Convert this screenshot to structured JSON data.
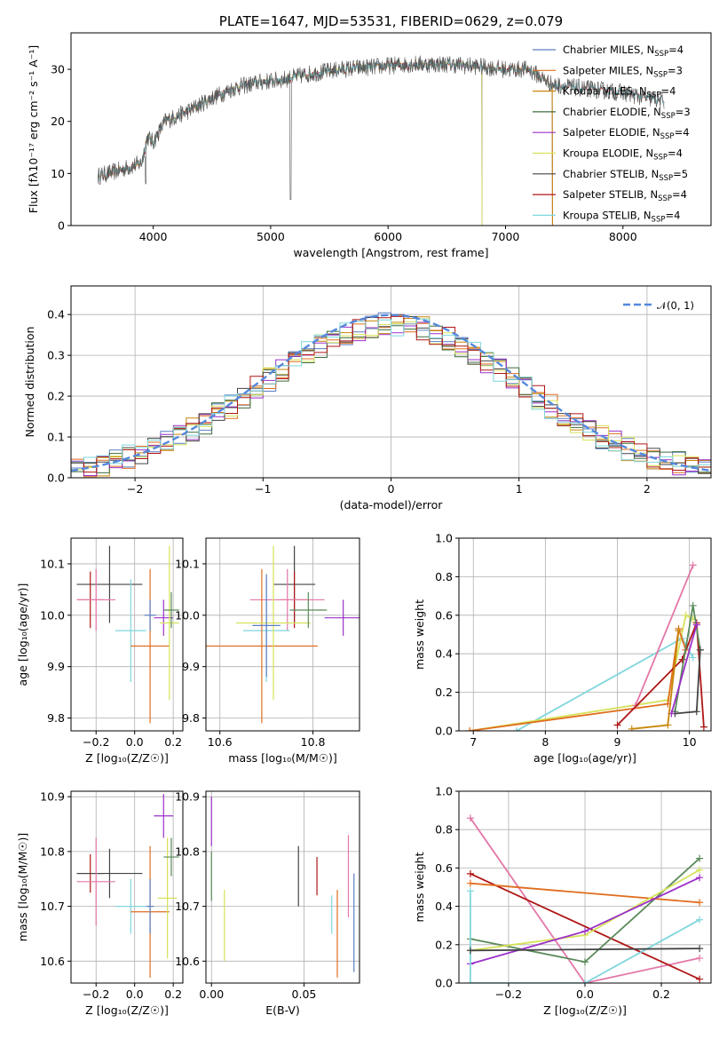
{
  "figure_title": "PLATE=1647, MJD=53531, FIBERID=0629, z=0.079",
  "colors": {
    "Chabrier MILES": "#5b7fc4",
    "Salpeter MILES": "#e06e1e",
    "Kroupa MILES": "#c8860a",
    "Chabrier ELODIE": "#3d6b3d",
    "Salpeter ELODIE": "#9b30c9",
    "Kroupa ELODIE": "#d6e25a",
    "Chabrier STELIB": "#444444",
    "Salpeter STELIB": "#b01616",
    "Kroupa STELIB": "#7fd6dc",
    "gauss": "#5588dd",
    "extra_pink": "#e377a8",
    "extra_green": "#5a8a5a"
  },
  "chart_data": [
    {
      "type": "line",
      "title": "PLATE=1647, MJD=53531, FIBERID=0629, z=0.079",
      "xlabel": "wavelength [Angstrom, rest frame]",
      "ylabel": "Flux [fλ10⁻¹⁷ erg cm⁻² s⁻¹ A⁻¹]",
      "xlim": [
        3300,
        8750
      ],
      "ylim": [
        0,
        37
      ],
      "xticks": [
        "4000",
        "5000",
        "6000",
        "7000",
        "8000"
      ],
      "yticks": [
        "0",
        "10",
        "20",
        "30"
      ],
      "legend": [
        {
          "name": "Chabrier MILES, N",
          "sub": "SSP",
          "tail": "=4"
        },
        {
          "name": "Salpeter MILES, N",
          "sub": "SSP",
          "tail": "=3"
        },
        {
          "name": "Kroupa MILES, N",
          "sub": "SSP",
          "tail": "=4"
        },
        {
          "name": "Chabrier ELODIE, N",
          "sub": "SSP",
          "tail": "=3"
        },
        {
          "name": "Salpeter ELODIE, N",
          "sub": "SSP",
          "tail": "=4"
        },
        {
          "name": "Kroupa ELODIE, N",
          "sub": "SSP",
          "tail": "=4"
        },
        {
          "name": "Chabrier STELIB, N",
          "sub": "SSP",
          "tail": "=5"
        },
        {
          "name": "Salpeter STELIB, N",
          "sub": "SSP",
          "tail": "=4"
        },
        {
          "name": "Kroupa STELIB, N",
          "sub": "SSP",
          "tail": "=4"
        }
      ],
      "continuum": [
        [
          3530,
          9.5
        ],
        [
          3700,
          10.5
        ],
        [
          3900,
          12
        ],
        [
          3950,
          17
        ],
        [
          4000,
          16
        ],
        [
          4100,
          20
        ],
        [
          4300,
          22
        ],
        [
          4500,
          24.5
        ],
        [
          4700,
          26.5
        ],
        [
          4900,
          27.5
        ],
        [
          5100,
          28
        ],
        [
          5300,
          29
        ],
        [
          5600,
          30
        ],
        [
          5900,
          30.5
        ],
        [
          6200,
          31
        ],
        [
          6500,
          31
        ],
        [
          6800,
          30.5
        ],
        [
          7000,
          30
        ],
        [
          7200,
          30
        ],
        [
          7400,
          27
        ],
        [
          7600,
          26.5
        ],
        [
          7800,
          26
        ],
        [
          8000,
          25.5
        ],
        [
          8200,
          24.5
        ],
        [
          8350,
          24
        ]
      ]
    },
    {
      "type": "histogram",
      "xlabel": "(data-model)/error",
      "ylabel": "Normed distribution",
      "xlim": [
        -2.5,
        2.5
      ],
      "ylim": [
        0,
        0.47
      ],
      "xticks": [
        "−2",
        "−1",
        "0",
        "1",
        "2"
      ],
      "yticks": [
        "0.0",
        "0.1",
        "0.2",
        "0.3",
        "0.4"
      ],
      "legend": "𝒩(0, 1)",
      "bin_width": 0.1
    },
    {
      "type": "scatter",
      "xlabel": "Z [log₁₀(Z/Z☉)]",
      "ylabel": "age  [log₁₀(age/yr)]",
      "xlim": [
        -0.33,
        0.25
      ],
      "ylim": [
        9.775,
        10.15
      ],
      "xticks": [
        "−0.2",
        "0.0",
        "0.2"
      ],
      "yticks": [
        "9.8",
        "9.9",
        "10.0",
        "10.1"
      ],
      "points": [
        {
          "c": "Chabrier STELIB",
          "x": -0.13,
          "xe": 0.17,
          "y": 10.06,
          "ye": 0.075
        },
        {
          "c": "Salpeter STELIB",
          "x": -0.23,
          "xe": 0.07,
          "y": 10.03,
          "ye": 0.055
        },
        {
          "c": "extra_pink",
          "x": -0.2,
          "xe": 0.1,
          "y": 10.03,
          "ye": 0.06
        },
        {
          "c": "Kroupa STELIB",
          "x": -0.02,
          "xe": 0.08,
          "y": 9.97,
          "ye": 0.1
        },
        {
          "c": "Salpeter MILES",
          "x": 0.08,
          "xe": 0.1,
          "y": 9.94,
          "ye": 0.15
        },
        {
          "c": "Salpeter ELODIE",
          "x": 0.15,
          "xe": 0.05,
          "y": 9.995,
          "ye": 0.035
        },
        {
          "c": "Kroupa ELODIE",
          "x": 0.18,
          "xe": 0.05,
          "y": 9.985,
          "ye": 0.15
        },
        {
          "c": "extra_green",
          "x": 0.19,
          "xe": 0.04,
          "y": 10.01,
          "ye": 0.035
        },
        {
          "c": "Chabrier MILES",
          "x": 0.08,
          "xe": 0.03,
          "y": 10.0,
          "ye": 0.03
        }
      ]
    },
    {
      "type": "scatter",
      "xlabel": "mass [log₁₀(M/M☉)]",
      "ylabel": "",
      "xlim": [
        10.57,
        10.9
      ],
      "ylim": [
        9.775,
        10.15
      ],
      "xticks": [
        "10.6",
        "10.8"
      ],
      "yticks": [
        "9.8",
        "9.9",
        "10.0",
        "10.1"
      ],
      "points": [
        {
          "c": "Chabrier STELIB",
          "x": 10.76,
          "xe": 0.045,
          "y": 10.06,
          "ye": 0.075
        },
        {
          "c": "Salpeter STELIB",
          "x": 10.76,
          "xe": 0.03,
          "y": 10.03,
          "ye": 0.055
        },
        {
          "c": "extra_pink",
          "x": 10.745,
          "xe": 0.08,
          "y": 10.03,
          "ye": 0.06
        },
        {
          "c": "Kroupa STELIB",
          "x": 10.7,
          "xe": 0.05,
          "y": 9.97,
          "ye": 0.1
        },
        {
          "c": "Salpeter MILES",
          "x": 10.69,
          "xe": 0.12,
          "y": 9.94,
          "ye": 0.15
        },
        {
          "c": "Salpeter ELODIE",
          "x": 10.865,
          "xe": 0.04,
          "y": 9.995,
          "ye": 0.035
        },
        {
          "c": "Kroupa ELODIE",
          "x": 10.715,
          "xe": 0.08,
          "y": 9.985,
          "ye": 0.15
        },
        {
          "c": "extra_green",
          "x": 10.79,
          "xe": 0.04,
          "y": 10.01,
          "ye": 0.035
        },
        {
          "c": "Chabrier MILES",
          "x": 10.7,
          "xe": 0.03,
          "y": 9.98,
          "ye": 0.1
        }
      ]
    },
    {
      "type": "line",
      "xlabel": "age  [log₁₀(age/yr)]",
      "ylabel": "mass weight",
      "xlim": [
        6.8,
        10.3
      ],
      "ylim": [
        0,
        1
      ],
      "xticks": [
        "7",
        "8",
        "9",
        "10"
      ],
      "yticks": [
        "0.0",
        "0.2",
        "0.4",
        "0.6",
        "0.8",
        "1.0"
      ],
      "series": [
        {
          "c": "Kroupa STELIB",
          "pts": [
            [
              7.6,
              0
            ],
            [
              9.9,
              0.48
            ],
            [
              10.05,
              0.38
            ]
          ]
        },
        {
          "c": "Kroupa ELODIE",
          "pts": [
            [
              6.95,
              0
            ],
            [
              9.7,
              0.16
            ],
            [
              9.95,
              0.6
            ],
            [
              10.05,
              0.58
            ]
          ]
        },
        {
          "c": "Salpeter MILES",
          "pts": [
            [
              6.95,
              0
            ],
            [
              9.7,
              0.14
            ],
            [
              9.85,
              0.53
            ],
            [
              9.95,
              0.42
            ]
          ]
        },
        {
          "c": "extra_pink",
          "pts": [
            [
              9.25,
              0.13
            ],
            [
              10.05,
              0.86
            ]
          ]
        },
        {
          "c": "Salpeter STELIB",
          "pts": [
            [
              9.0,
              0.03
            ],
            [
              9.9,
              0.37
            ],
            [
              10.1,
              0.56
            ],
            [
              10.2,
              0.02
            ]
          ]
        },
        {
          "c": "extra_green",
          "pts": [
            [
              9.8,
              0.1
            ],
            [
              10.05,
              0.65
            ],
            [
              10.15,
              0.42
            ]
          ]
        },
        {
          "c": "Chabrier STELIB",
          "pts": [
            [
              9.8,
              0.09
            ],
            [
              10.1,
              0.1
            ],
            [
              10.15,
              0.42
            ]
          ]
        },
        {
          "c": "Salpeter ELODIE",
          "pts": [
            [
              9.75,
              0.09
            ],
            [
              10.1,
              0.55
            ]
          ]
        },
        {
          "c": "Kroupa MILES",
          "pts": [
            [
              9.2,
              0.01
            ],
            [
              9.7,
              0.03
            ],
            [
              9.85,
              0.52
            ]
          ]
        }
      ]
    },
    {
      "type": "scatter",
      "xlabel": "Z [log₁₀(Z/Z☉)]",
      "ylabel": "mass [log₁₀(M/M☉)]",
      "xlim": [
        -0.33,
        0.25
      ],
      "ylim": [
        10.56,
        10.91
      ],
      "xticks": [
        "−0.2",
        "0.0",
        "0.2"
      ],
      "yticks": [
        "10.6",
        "10.7",
        "10.8",
        "10.9"
      ],
      "points": [
        {
          "c": "Salpeter STELIB",
          "x": -0.23,
          "xe": 0.07,
          "y": 10.76,
          "ye": 0.035
        },
        {
          "c": "Chabrier STELIB",
          "x": -0.13,
          "xe": 0.17,
          "y": 10.76,
          "ye": 0.045
        },
        {
          "c": "extra_pink",
          "x": -0.2,
          "xe": 0.1,
          "y": 10.745,
          "ye": 0.08
        },
        {
          "c": "Kroupa STELIB",
          "x": -0.02,
          "xe": 0.08,
          "y": 10.7,
          "ye": 0.05
        },
        {
          "c": "Salpeter MILES",
          "x": 0.08,
          "xe": 0.1,
          "y": 10.69,
          "ye": 0.12
        },
        {
          "c": "Salpeter ELODIE",
          "x": 0.15,
          "xe": 0.05,
          "y": 10.865,
          "ye": 0.04
        },
        {
          "c": "Kroupa ELODIE",
          "x": 0.17,
          "xe": 0.05,
          "y": 10.715,
          "ye": 0.11
        },
        {
          "c": "extra_green",
          "x": 0.19,
          "xe": 0.04,
          "y": 10.79,
          "ye": 0.035
        },
        {
          "c": "Chabrier MILES",
          "x": 0.08,
          "xe": 0.02,
          "y": 10.7,
          "ye": 0.05
        }
      ]
    },
    {
      "type": "scatter",
      "xlabel": "E(B-V)",
      "ylabel": "",
      "xlim": [
        -0.003,
        0.08
      ],
      "ylim": [
        10.56,
        10.91
      ],
      "xticks": [
        "0.00",
        "0.05"
      ],
      "yticks": [
        "10.6",
        "10.7",
        "10.8",
        "10.9"
      ],
      "vlines": [
        {
          "c": "Salpeter ELODIE",
          "x": 0.0,
          "y0": 10.81,
          "y1": 10.9
        },
        {
          "c": "extra_green",
          "x": 0.0,
          "y0": 10.71,
          "y1": 10.8
        },
        {
          "c": "Kroupa ELODIE",
          "x": 0.007,
          "y0": 10.6,
          "y1": 10.73
        },
        {
          "c": "Chabrier STELIB",
          "x": 0.047,
          "y0": 10.7,
          "y1": 10.81
        },
        {
          "c": "Salpeter STELIB",
          "x": 0.057,
          "y0": 10.72,
          "y1": 10.79
        },
        {
          "c": "Kroupa STELIB",
          "x": 0.065,
          "y0": 10.65,
          "y1": 10.72
        },
        {
          "c": "Salpeter MILES",
          "x": 0.068,
          "y0": 10.57,
          "y1": 10.73
        },
        {
          "c": "extra_pink",
          "x": 0.074,
          "y0": 10.68,
          "y1": 10.83
        },
        {
          "c": "Chabrier MILES",
          "x": 0.077,
          "y0": 10.58,
          "y1": 10.76
        }
      ]
    },
    {
      "type": "line",
      "xlabel": "Z [log₁₀(Z/Z☉)]",
      "ylabel": "mass weight",
      "xlim": [
        -0.33,
        0.33
      ],
      "ylim": [
        0,
        1
      ],
      "xticks": [
        "−0.2",
        "0.0",
        "0.2"
      ],
      "yticks": [
        "0.0",
        "0.2",
        "0.4",
        "0.6",
        "0.8",
        "1.0"
      ],
      "series": [
        {
          "c": "extra_pink",
          "pts": [
            [
              -0.3,
              0.86
            ],
            [
              0.0,
              0.0
            ],
            [
              0.3,
              0.13
            ]
          ]
        },
        {
          "c": "Salpeter STELIB",
          "pts": [
            [
              -0.3,
              0.57
            ],
            [
              0.3,
              0.02
            ]
          ]
        },
        {
          "c": "Salpeter MILES",
          "pts": [
            [
              -0.3,
              0.52
            ],
            [
              0.3,
              0.42
            ]
          ]
        },
        {
          "c": "extra_green",
          "pts": [
            [
              -0.3,
              0.23
            ],
            [
              0.0,
              0.11
            ],
            [
              0.3,
              0.65
            ]
          ]
        },
        {
          "c": "Kroupa ELODIE",
          "pts": [
            [
              -0.3,
              0.17
            ],
            [
              0.0,
              0.25
            ],
            [
              0.3,
              0.59
            ]
          ]
        },
        {
          "c": "Salpeter ELODIE",
          "pts": [
            [
              -0.3,
              0.1
            ],
            [
              0.0,
              0.27
            ],
            [
              0.3,
              0.55
            ]
          ]
        },
        {
          "c": "Kroupa STELIB",
          "pts": [
            [
              -0.3,
              0.48
            ],
            [
              -0.3,
              0.0
            ],
            [
              0.0,
              0.0
            ],
            [
              0.3,
              0.33
            ]
          ]
        },
        {
          "c": "Chabrier STELIB",
          "pts": [
            [
              -0.3,
              0.17
            ],
            [
              0.3,
              0.18
            ]
          ]
        }
      ]
    }
  ]
}
